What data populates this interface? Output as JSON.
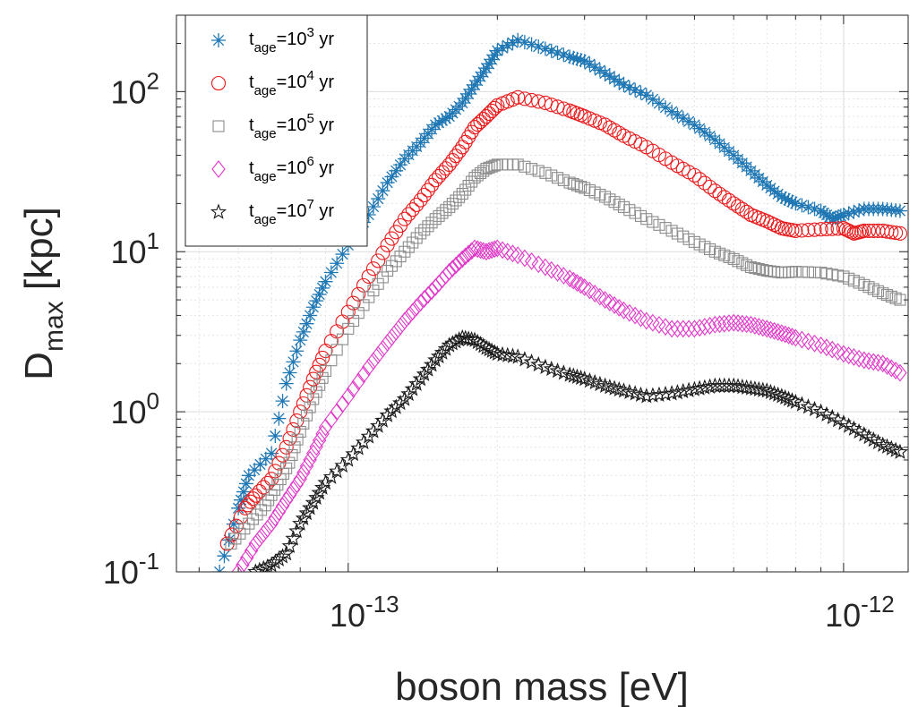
{
  "chart_data": {
    "type": "scatter",
    "title": "",
    "xlabel": "boson mass [eV]",
    "ylabel_main": "D",
    "ylabel_sub": "max",
    "ylabel_unit": "[kpc]",
    "xscale": "log",
    "yscale": "log",
    "xlim": [
      4.5e-14,
      1.35e-12
    ],
    "ylim": [
      0.1,
      300
    ],
    "grid": true,
    "legend_position": "top-left",
    "x_ticks": [
      {
        "value": 1e-13,
        "base": "10",
        "exp": "-13"
      },
      {
        "value": 1e-12,
        "base": "10",
        "exp": "-12"
      }
    ],
    "y_ticks": [
      {
        "value": 0.1,
        "base": "10",
        "exp": "-1"
      },
      {
        "value": 1,
        "base": "10",
        "exp": "0"
      },
      {
        "value": 10,
        "base": "10",
        "exp": "1"
      },
      {
        "value": 100,
        "base": "10",
        "exp": "2"
      }
    ],
    "series": [
      {
        "name": "t_age=10^3 yr",
        "legend": {
          "t": "t",
          "sub": "age",
          "eq": "=10",
          "sup": "3",
          "unit": " yr"
        },
        "marker": "asterisk",
        "color": "#1f77b4",
        "points": [
          [
            5.5e-14,
            0.1
          ],
          [
            6e-14,
            0.25
          ],
          [
            6.3e-14,
            0.4
          ],
          [
            7e-14,
            0.55
          ],
          [
            7.5e-14,
            1.5
          ],
          [
            8e-14,
            2.8
          ],
          [
            8.5e-14,
            4.5
          ],
          [
            9e-14,
            6.5
          ],
          [
            1e-13,
            11
          ],
          [
            1.1e-13,
            17
          ],
          [
            1.2e-13,
            27
          ],
          [
            1.3e-13,
            38
          ],
          [
            1.4e-13,
            48
          ],
          [
            1.5e-13,
            62
          ],
          [
            1.6e-13,
            70
          ],
          [
            1.7e-13,
            85
          ],
          [
            1.8e-13,
            110
          ],
          [
            1.9e-13,
            140
          ],
          [
            2e-13,
            180
          ],
          [
            2.2e-13,
            210
          ],
          [
            2.5e-13,
            185
          ],
          [
            2.8e-13,
            165
          ],
          [
            3e-13,
            155
          ],
          [
            3.3e-13,
            130
          ],
          [
            3.6e-13,
            110
          ],
          [
            4e-13,
            95
          ],
          [
            4.5e-13,
            75
          ],
          [
            5e-13,
            62
          ],
          [
            5.5e-13,
            50
          ],
          [
            6e-13,
            40
          ],
          [
            6.5e-13,
            32
          ],
          [
            7e-13,
            26
          ],
          [
            7.5e-13,
            22
          ],
          [
            8e-13,
            20
          ],
          [
            9e-13,
            18
          ],
          [
            9.5e-13,
            16
          ],
          [
            1e-12,
            17
          ],
          [
            1.1e-12,
            18.5
          ],
          [
            1.2e-12,
            18.5
          ],
          [
            1.3e-12,
            18
          ]
        ]
      },
      {
        "name": "t_age=10^4 yr",
        "legend": {
          "t": "t",
          "sub": "age",
          "eq": "=10",
          "sup": "4",
          "unit": " yr"
        },
        "marker": "circle",
        "color": "#e8191a",
        "points": [
          [
            5.7e-14,
            0.15
          ],
          [
            6.2e-14,
            0.25
          ],
          [
            6.5e-14,
            0.3
          ],
          [
            7e-14,
            0.38
          ],
          [
            7.5e-14,
            0.6
          ],
          [
            8e-14,
            1
          ],
          [
            8.5e-14,
            1.6
          ],
          [
            9e-14,
            2.4
          ],
          [
            1e-13,
            4.2
          ],
          [
            1.1e-13,
            7
          ],
          [
            1.2e-13,
            11
          ],
          [
            1.3e-13,
            16
          ],
          [
            1.4e-13,
            21
          ],
          [
            1.5e-13,
            28
          ],
          [
            1.6e-13,
            35
          ],
          [
            1.7e-13,
            45
          ],
          [
            1.8e-13,
            60
          ],
          [
            1.9e-13,
            70
          ],
          [
            2e-13,
            82
          ],
          [
            2.2e-13,
            92
          ],
          [
            2.5e-13,
            85
          ],
          [
            2.8e-13,
            76
          ],
          [
            3e-13,
            70
          ],
          [
            3.3e-13,
            62
          ],
          [
            3.6e-13,
            53
          ],
          [
            4e-13,
            45
          ],
          [
            4.5e-13,
            36
          ],
          [
            5e-13,
            30
          ],
          [
            5.5e-13,
            24
          ],
          [
            6e-13,
            20
          ],
          [
            6.5e-13,
            17
          ],
          [
            7e-13,
            15.5
          ],
          [
            7.5e-13,
            14
          ],
          [
            8e-13,
            13.5
          ],
          [
            9e-13,
            13.8
          ],
          [
            1e-12,
            14
          ],
          [
            1.05e-12,
            13
          ],
          [
            1.1e-12,
            13.5
          ],
          [
            1.2e-12,
            13.5
          ],
          [
            1.3e-12,
            13
          ]
        ]
      },
      {
        "name": "t_age=10^5 yr",
        "legend": {
          "t": "t",
          "sub": "age",
          "eq": "=10",
          "sup": "5",
          "unit": " yr"
        },
        "marker": "square",
        "color": "#8c8c8c",
        "points": [
          [
            5.8e-14,
            0.15
          ],
          [
            6.3e-14,
            0.2
          ],
          [
            6.8e-14,
            0.26
          ],
          [
            7.2e-14,
            0.35
          ],
          [
            7.6e-14,
            0.48
          ],
          [
            8e-14,
            0.75
          ],
          [
            8.5e-14,
            1.2
          ],
          [
            9e-14,
            1.8
          ],
          [
            1e-13,
            3.3
          ],
          [
            1.1e-13,
            5.2
          ],
          [
            1.2e-13,
            7.6
          ],
          [
            1.3e-13,
            10
          ],
          [
            1.4e-13,
            13
          ],
          [
            1.5e-13,
            16
          ],
          [
            1.6e-13,
            19
          ],
          [
            1.7e-13,
            23
          ],
          [
            1.8e-13,
            29
          ],
          [
            1.9e-13,
            33
          ],
          [
            2e-13,
            35
          ],
          [
            2.2e-13,
            35
          ],
          [
            2.5e-13,
            31
          ],
          [
            2.8e-13,
            27
          ],
          [
            3e-13,
            25
          ],
          [
            3.3e-13,
            22
          ],
          [
            3.6e-13,
            19
          ],
          [
            4e-13,
            16
          ],
          [
            4.5e-13,
            13.5
          ],
          [
            5e-13,
            11.5
          ],
          [
            5.5e-13,
            10
          ],
          [
            6e-13,
            9
          ],
          [
            6.5e-13,
            8
          ],
          [
            7e-13,
            7.6
          ],
          [
            7.5e-13,
            7.4
          ],
          [
            8e-13,
            7.5
          ],
          [
            9e-13,
            7.4
          ],
          [
            1e-12,
            7
          ],
          [
            1.1e-12,
            6.2
          ],
          [
            1.2e-12,
            5.5
          ],
          [
            1.3e-12,
            5
          ]
        ]
      },
      {
        "name": "t_age=10^6 yr",
        "legend": {
          "t": "t",
          "sub": "age",
          "eq": "=10",
          "sup": "6",
          "unit": " yr"
        },
        "marker": "diamond",
        "color": "#e038c8",
        "points": [
          [
            6e-14,
            0.1
          ],
          [
            6.5e-14,
            0.15
          ],
          [
            7e-14,
            0.2
          ],
          [
            7.5e-14,
            0.28
          ],
          [
            8e-14,
            0.38
          ],
          [
            8.5e-14,
            0.55
          ],
          [
            9e-14,
            0.8
          ],
          [
            1e-13,
            1.25
          ],
          [
            1.1e-13,
            1.9
          ],
          [
            1.2e-13,
            2.7
          ],
          [
            1.3e-13,
            3.7
          ],
          [
            1.4e-13,
            4.8
          ],
          [
            1.5e-13,
            6
          ],
          [
            1.6e-13,
            7.5
          ],
          [
            1.7e-13,
            9
          ],
          [
            1.8e-13,
            10.5
          ],
          [
            1.9e-13,
            10
          ],
          [
            2e-13,
            10.5
          ],
          [
            2.2e-13,
            9.5
          ],
          [
            2.5e-13,
            8
          ],
          [
            2.8e-13,
            6.8
          ],
          [
            3e-13,
            6
          ],
          [
            3.3e-13,
            5
          ],
          [
            3.6e-13,
            4.3
          ],
          [
            4e-13,
            3.7
          ],
          [
            4.5e-13,
            3.3
          ],
          [
            5e-13,
            3.3
          ],
          [
            5.5e-13,
            3.5
          ],
          [
            6e-13,
            3.6
          ],
          [
            6.5e-13,
            3.5
          ],
          [
            7e-13,
            3.3
          ],
          [
            7.5e-13,
            3.1
          ],
          [
            8e-13,
            2.9
          ],
          [
            9e-13,
            2.6
          ],
          [
            1e-12,
            2.3
          ],
          [
            1.1e-12,
            2.1
          ],
          [
            1.2e-12,
            2
          ],
          [
            1.3e-12,
            1.75
          ]
        ]
      },
      {
        "name": "t_age=10^7 yr",
        "legend": {
          "t": "t",
          "sub": "age",
          "eq": "=10",
          "sup": "7",
          "unit": " yr"
        },
        "marker": "star",
        "color": "#1a1a1a",
        "points": [
          [
            6.5e-14,
            0.1
          ],
          [
            7e-14,
            0.11
          ],
          [
            7.5e-14,
            0.13
          ],
          [
            8e-14,
            0.2
          ],
          [
            8.5e-14,
            0.27
          ],
          [
            9e-14,
            0.36
          ],
          [
            1e-13,
            0.5
          ],
          [
            1.1e-13,
            0.7
          ],
          [
            1.2e-13,
            0.95
          ],
          [
            1.3e-13,
            1.2
          ],
          [
            1.4e-13,
            1.6
          ],
          [
            1.5e-13,
            2.1
          ],
          [
            1.6e-13,
            2.6
          ],
          [
            1.7e-13,
            2.9
          ],
          [
            1.8e-13,
            2.8
          ],
          [
            1.9e-13,
            2.5
          ],
          [
            2e-13,
            2.3
          ],
          [
            2.2e-13,
            2.2
          ],
          [
            2.5e-13,
            1.9
          ],
          [
            2.8e-13,
            1.7
          ],
          [
            3e-13,
            1.6
          ],
          [
            3.3e-13,
            1.45
          ],
          [
            3.6e-13,
            1.35
          ],
          [
            4e-13,
            1.25
          ],
          [
            4.5e-13,
            1.3
          ],
          [
            5e-13,
            1.38
          ],
          [
            5.5e-13,
            1.45
          ],
          [
            6e-13,
            1.45
          ],
          [
            6.5e-13,
            1.4
          ],
          [
            7e-13,
            1.35
          ],
          [
            7.5e-13,
            1.25
          ],
          [
            8e-13,
            1.15
          ],
          [
            9e-13,
            1
          ],
          [
            1e-12,
            0.85
          ],
          [
            1.1e-12,
            0.72
          ],
          [
            1.2e-12,
            0.62
          ],
          [
            1.3e-12,
            0.56
          ]
        ]
      }
    ]
  }
}
